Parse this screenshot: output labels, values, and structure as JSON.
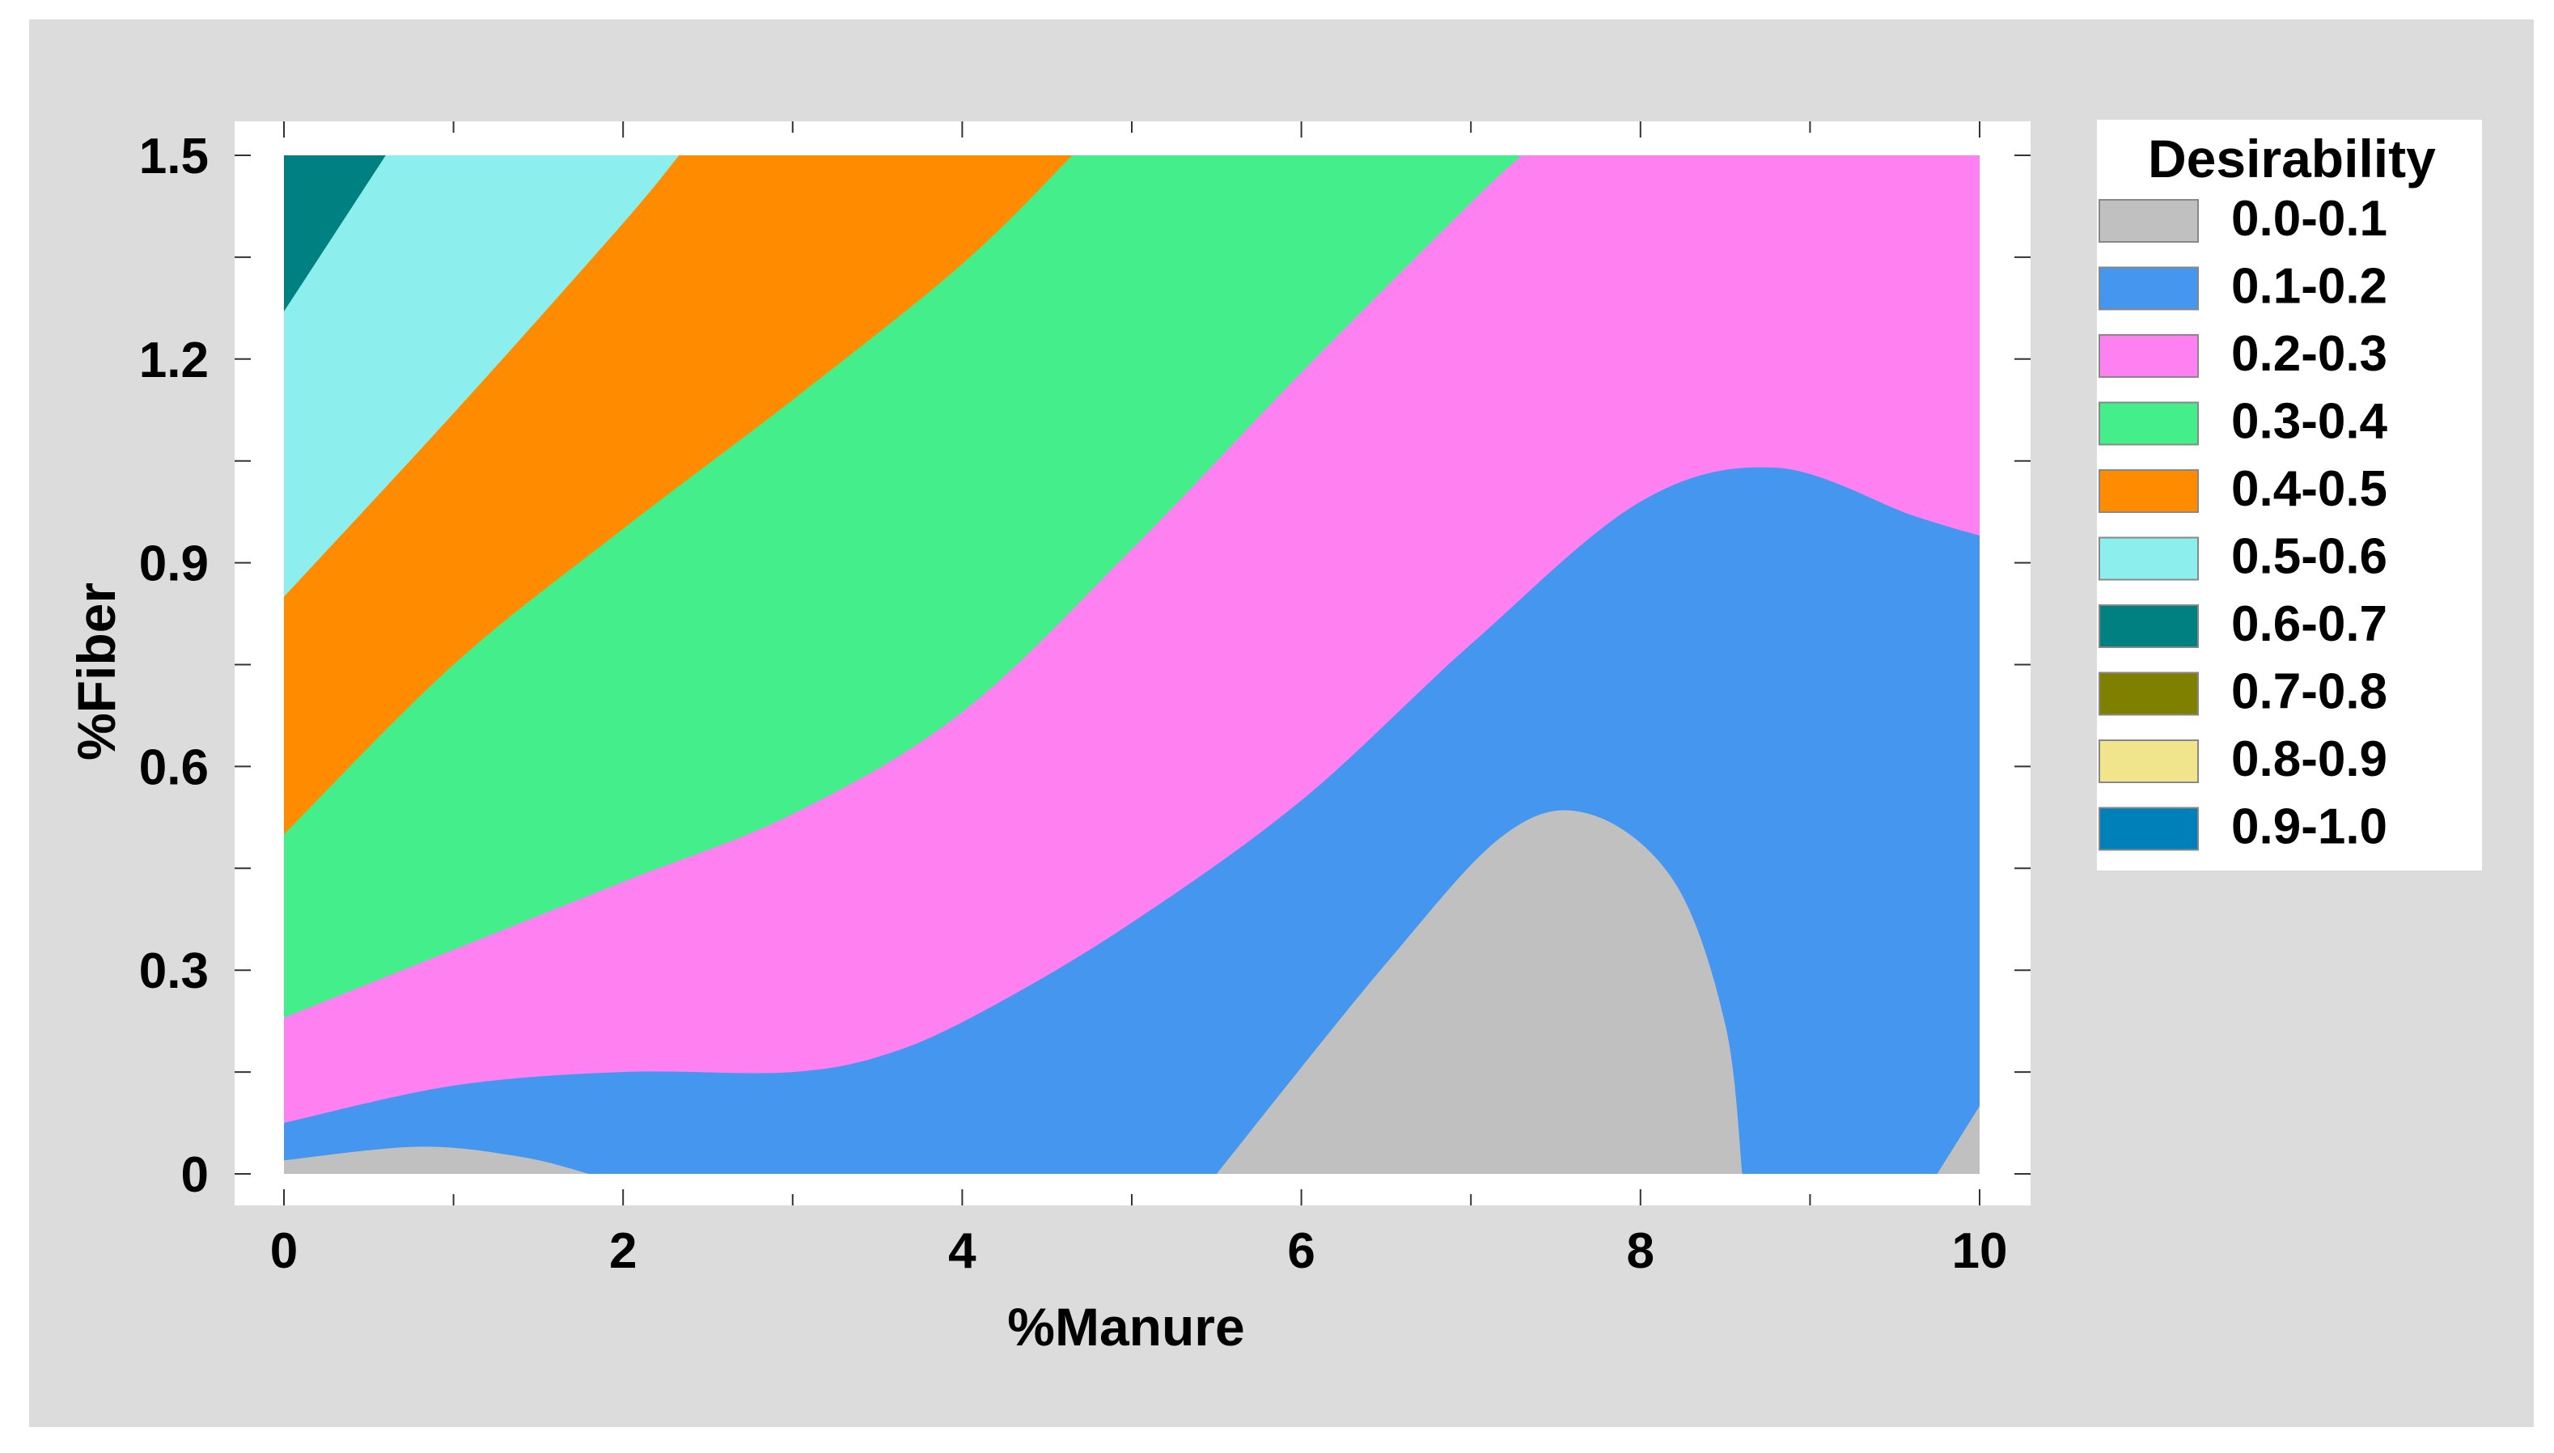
{
  "chart_data": {
    "type": "contour",
    "title": "",
    "xlabel": "%Manure",
    "ylabel": "%Fiber",
    "xlim": [
      0,
      10
    ],
    "ylim": [
      0,
      1.5
    ],
    "x_ticks": [
      0,
      2,
      4,
      6,
      8,
      10
    ],
    "x_tick_labels": [
      "0",
      "2",
      "4",
      "6",
      "8",
      "10"
    ],
    "y_ticks": [
      0,
      0.3,
      0.6,
      0.9,
      1.2,
      1.5
    ],
    "y_tick_labels": [
      "0",
      "0.3",
      "0.6",
      "0.9",
      "1.2",
      "1.5"
    ],
    "legend": {
      "title": "Desirability",
      "position": "right",
      "entries": [
        {
          "label": "0.0-0.1",
          "color": "#c0c0c0"
        },
        {
          "label": "0.1-0.2",
          "color": "#4496ee"
        },
        {
          "label": "0.2-0.3",
          "color": "#ff80f0"
        },
        {
          "label": "0.3-0.4",
          "color": "#44ee8a"
        },
        {
          "label": "0.4-0.5",
          "color": "#ff8c00"
        },
        {
          "label": "0.5-0.6",
          "color": "#8cefee"
        },
        {
          "label": "0.6-0.7",
          "color": "#008080"
        },
        {
          "label": "0.7-0.8",
          "color": "#808000"
        },
        {
          "label": "0.8-0.9",
          "color": "#f0e48c"
        },
        {
          "label": "0.9-1.0",
          "color": "#0080b8"
        }
      ]
    },
    "contours": [
      {
        "level": 0.1,
        "points": [
          [
            0,
            0.075
          ],
          [
            1,
            0.13
          ],
          [
            2,
            0.15
          ],
          [
            3,
            0.15
          ],
          [
            3.6,
            0.18
          ],
          [
            4.2,
            0.25
          ],
          [
            5,
            0.37
          ],
          [
            6,
            0.55
          ],
          [
            7,
            0.78
          ],
          [
            8,
            0.99
          ],
          [
            8.8,
            1.04
          ],
          [
            9.6,
            0.97
          ],
          [
            10,
            0.94
          ]
        ]
      },
      {
        "level": 0.2,
        "points": [
          [
            0,
            0.23
          ],
          [
            1,
            0.33
          ],
          [
            2,
            0.43
          ],
          [
            3,
            0.53
          ],
          [
            4,
            0.68
          ],
          [
            5,
            0.92
          ],
          [
            6,
            1.18
          ],
          [
            7,
            1.43
          ],
          [
            7.3,
            1.5
          ]
        ]
      },
      {
        "level": 0.3,
        "points": [
          [
            0,
            0.5
          ],
          [
            1,
            0.75
          ],
          [
            2,
            0.95
          ],
          [
            3,
            1.14
          ],
          [
            4,
            1.34
          ],
          [
            4.65,
            1.5
          ]
        ]
      },
      {
        "level": 0.4,
        "points": [
          [
            0,
            0.85
          ],
          [
            1,
            1.12
          ],
          [
            2,
            1.4
          ],
          [
            2.33,
            1.5
          ]
        ]
      },
      {
        "level": 0.5,
        "points": [
          [
            0,
            1.27
          ],
          [
            0.6,
            1.5
          ]
        ]
      },
      {
        "level": 0.1,
        "points": [
          [
            0,
            0.02
          ],
          [
            0.8,
            0.04
          ],
          [
            1.4,
            0.025
          ],
          [
            1.8,
            0
          ]
        ]
      },
      {
        "level": 0.1,
        "points": [
          [
            5.5,
            0
          ],
          [
            6.5,
            0.31
          ],
          [
            7.2,
            0.5
          ],
          [
            7.7,
            0.53
          ],
          [
            8.2,
            0.43
          ],
          [
            8.5,
            0.22
          ],
          [
            8.6,
            0
          ]
        ]
      },
      {
        "level": 0.1,
        "points": [
          [
            9.75,
            0
          ],
          [
            10,
            0.1
          ]
        ]
      }
    ]
  },
  "style": {
    "background": "#dcdcdc",
    "plot_background": "#ffffff"
  }
}
